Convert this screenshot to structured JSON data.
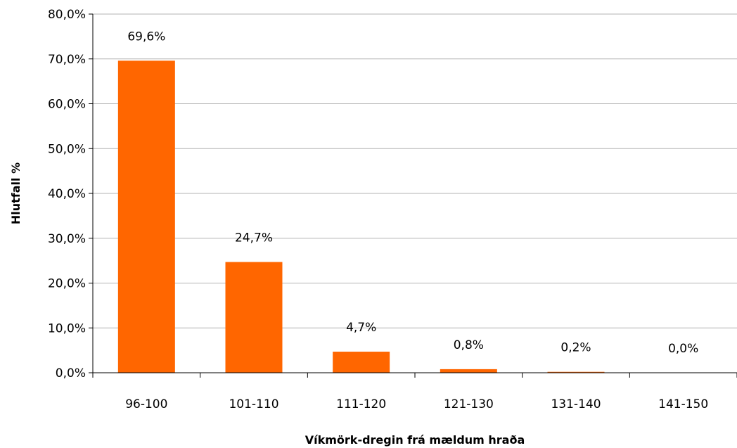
{
  "chart_data": {
    "type": "bar",
    "categories": [
      "96-100",
      "101-110",
      "111-120",
      "121-130",
      "131-140",
      "141-150"
    ],
    "values": [
      69.6,
      24.7,
      4.7,
      0.8,
      0.2,
      0.0
    ],
    "data_labels": [
      "69,6%",
      "24,7%",
      "4,7%",
      "0,8%",
      "0,2%",
      "0,0%"
    ],
    "xlabel": "Víkmörk-dregin frá mældum hraða",
    "ylabel": "Hlutfall %",
    "ylim": [
      0,
      80
    ],
    "y_ticks": [
      0,
      10,
      20,
      30,
      40,
      50,
      60,
      70,
      80
    ],
    "y_tick_labels": [
      "0,0%",
      "10,0%",
      "20,0%",
      "30,0%",
      "40,0%",
      "50,0%",
      "60,0%",
      "70,0%",
      "80,0%"
    ],
    "bar_color": "#ff6600",
    "grid": true,
    "legend": "none"
  }
}
